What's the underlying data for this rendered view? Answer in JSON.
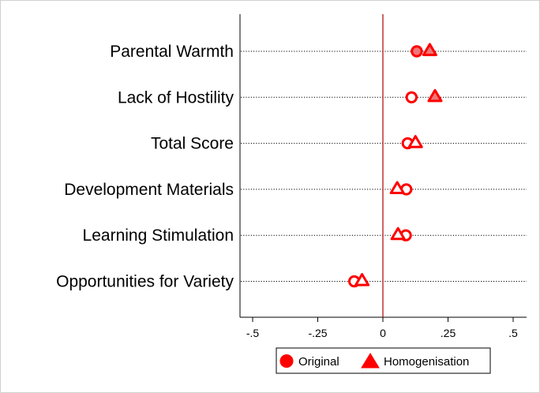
{
  "chart_data": {
    "type": "scatter",
    "orientation": "horizontal-dot-plot",
    "categories": [
      "Parental Warmth",
      "Lack of Hostility",
      "Total Score",
      "Development Materials",
      "Learning Stimulation",
      "Opportunities for Variety"
    ],
    "series": [
      {
        "name": "Original",
        "marker": "circle",
        "color": "#ff0000",
        "values": [
          0.13,
          0.11,
          0.095,
          0.09,
          0.088,
          -0.11
        ],
        "filled": [
          true,
          false,
          false,
          false,
          false,
          false
        ]
      },
      {
        "name": "Homogenisation",
        "marker": "triangle",
        "color": "#ff0000",
        "values": [
          0.18,
          0.2,
          0.125,
          0.055,
          0.058,
          -0.08
        ],
        "filled": [
          true,
          true,
          false,
          false,
          false,
          false
        ]
      }
    ],
    "x_ticks": [
      -0.5,
      -0.25,
      0,
      0.25,
      0.5
    ],
    "x_tick_labels": [
      "-.5",
      "-.25",
      "0",
      ".25",
      ".5"
    ],
    "xlim": [
      -0.55,
      0.53
    ],
    "reference_line_x": 0,
    "reference_line_color": "#b00000",
    "grid": "dotted horizontal lines at each category",
    "legend_position": "bottom",
    "title": "",
    "xlabel": "",
    "ylabel": "",
    "colors": {
      "marker": "#ff0000",
      "marker_fill_light": "#ee7777",
      "frame": "#000000"
    }
  }
}
